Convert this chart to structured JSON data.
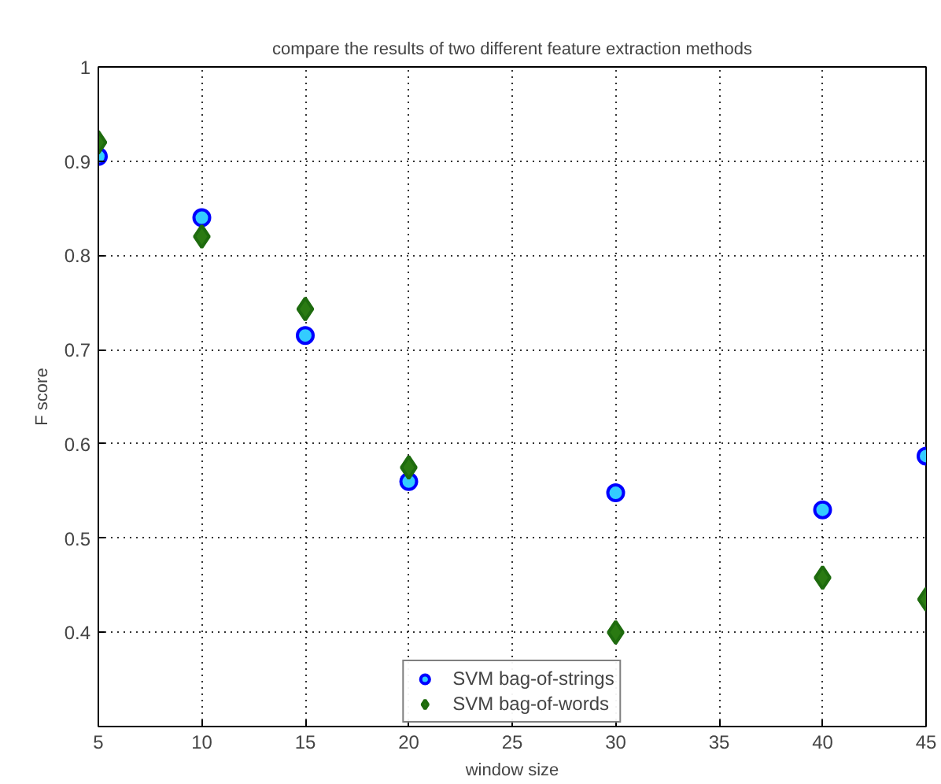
{
  "chart_data": {
    "type": "scatter",
    "title": "compare the results of two different feature extraction methods",
    "xlabel": "window size",
    "ylabel": "F score",
    "x": [
      5,
      10,
      15,
      20,
      30,
      40,
      45
    ],
    "series": [
      {
        "name": "SVM bag-of-strings",
        "color": "#0000ff",
        "marker": "circle",
        "values": [
          0.905,
          0.84,
          0.715,
          0.56,
          0.548,
          0.53,
          0.587
        ]
      },
      {
        "name": "SVM bag-of-words",
        "color": "#1e6b0e",
        "marker": "diamond",
        "values": [
          0.92,
          0.82,
          0.743,
          0.575,
          0.4,
          0.458,
          0.435
        ]
      }
    ],
    "xlim": [
      5,
      45
    ],
    "ylim": [
      0.3,
      1
    ],
    "xticks": [
      5,
      10,
      15,
      20,
      25,
      30,
      35,
      40,
      45
    ],
    "yticks": [
      0.4,
      0.5,
      0.6,
      0.7,
      0.8,
      0.9,
      1
    ],
    "grid": true,
    "legend": "bottom",
    "line_style": "dotted"
  }
}
